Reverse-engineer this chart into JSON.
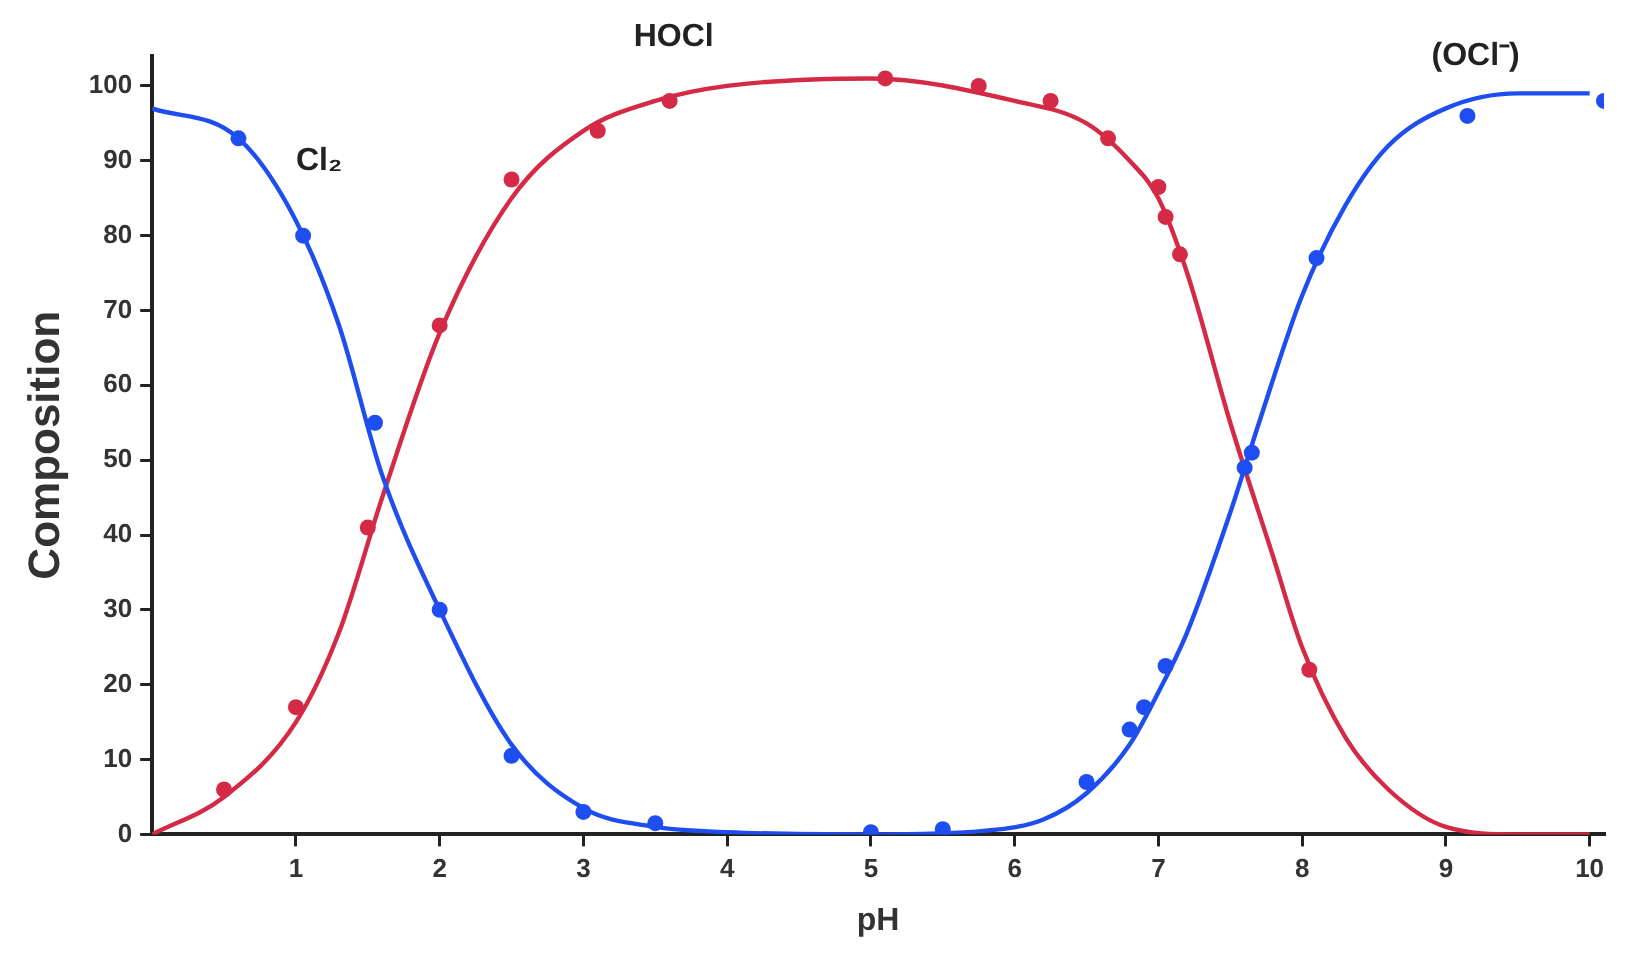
{
  "chart_data": {
    "type": "line",
    "xlabel": "pH",
    "ylabel": "Composition",
    "annotations": [
      "Cl₂",
      "HOCl",
      "(OCl⁻)"
    ],
    "xlim": [
      0,
      10.1
    ],
    "xticks": [
      1,
      2,
      3,
      4,
      5,
      6,
      7,
      8,
      9,
      10
    ],
    "ylim": [
      0,
      104
    ],
    "yticks": [
      0,
      10,
      20,
      30,
      40,
      50,
      60,
      70,
      80,
      90,
      100
    ],
    "grid": false,
    "legend": false,
    "series": [
      {
        "color": "#1f4ef0",
        "marker": "none",
        "x": [
          0,
          0.6,
          1,
          1.3,
          1.6,
          2,
          2.5,
          3,
          3.5,
          4,
          5,
          5.8,
          6.2,
          6.5,
          6.8,
          7,
          7.2,
          7.5,
          7.7,
          8,
          8.3,
          8.6,
          9,
          9.5,
          10
        ],
        "values": [
          97,
          93,
          82,
          68,
          48,
          30,
          12,
          3.5,
          1,
          0.3,
          0,
          0.5,
          2,
          5.5,
          12,
          19,
          27,
          43,
          55,
          72,
          84,
          92,
          97,
          99,
          99
        ]
      },
      {
        "color": "#d42a45",
        "marker": "none",
        "x": [
          0,
          0.5,
          1,
          1.3,
          1.6,
          2,
          2.5,
          3,
          3.5,
          4,
          5,
          6,
          6.5,
          6.8,
          7,
          7.2,
          7.5,
          7.8,
          8,
          8.3,
          8.6,
          9,
          9.5,
          10
        ],
        "values": [
          0,
          5,
          15,
          27,
          45,
          67,
          85,
          94,
          98,
          100,
          101,
          98,
          95,
          90,
          85,
          75,
          55,
          37,
          25,
          13,
          6,
          1,
          0,
          0
        ]
      },
      {
        "type": "scatter",
        "color": "#1f4ef0",
        "marker": "circle",
        "x": [
          0.6,
          1.05,
          1.55,
          2,
          2.5,
          3,
          3.5,
          5,
          5.5,
          6.5,
          6.8,
          6.9,
          7.05,
          7.6,
          7.65,
          8.1,
          9.15,
          10.1
        ],
        "values": [
          93,
          80,
          55,
          30,
          10.5,
          3,
          1.5,
          0.3,
          0.7,
          7,
          14,
          17,
          22.5,
          49,
          51,
          77,
          96,
          98
        ]
      },
      {
        "type": "scatter",
        "color": "#d42a45",
        "marker": "circle",
        "x": [
          0.5,
          1,
          1.5,
          2,
          2.5,
          3.1,
          3.6,
          5.1,
          5.75,
          6.25,
          6.65,
          7,
          7.05,
          7.15,
          8.05
        ],
        "values": [
          6,
          17,
          41,
          68,
          87.5,
          94,
          98,
          101,
          100,
          98,
          93,
          86.5,
          82.5,
          77.5,
          22
        ]
      }
    ]
  }
}
